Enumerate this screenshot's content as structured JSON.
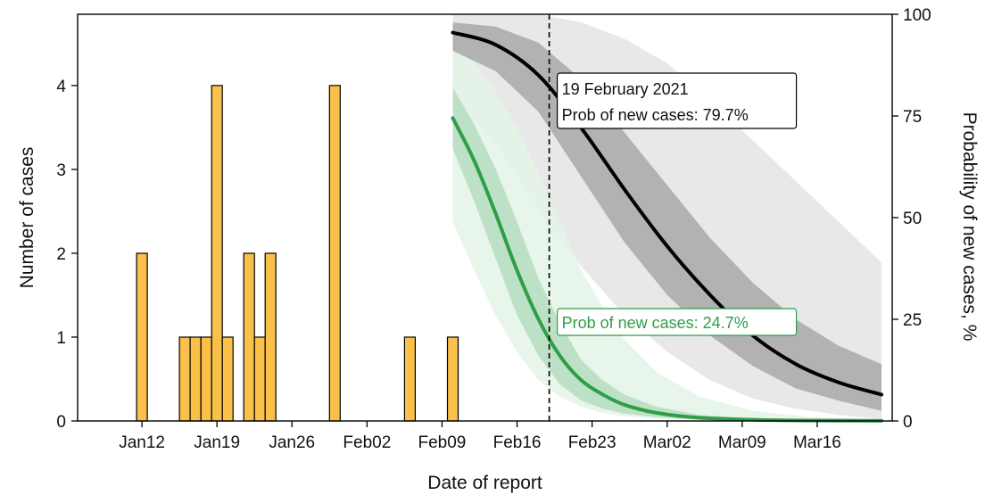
{
  "chart_data": {
    "type": "bar+line",
    "xlabel": "Date of report",
    "ylabel_left": "Number of cases",
    "ylabel_right": "Probability of new cases, %",
    "x_range": [
      "2021-01-06",
      "2021-03-23"
    ],
    "ylim_left": [
      0,
      4.85
    ],
    "ylim_right": [
      0,
      100
    ],
    "yticks_left": [
      0,
      1,
      2,
      3,
      4
    ],
    "yticks_right": [
      0,
      25,
      50,
      75,
      100
    ],
    "xticks": [
      {
        "date": "2021-01-12",
        "label": "Jan12"
      },
      {
        "date": "2021-01-19",
        "label": "Jan19"
      },
      {
        "date": "2021-01-26",
        "label": "Jan26"
      },
      {
        "date": "2021-02-02",
        "label": "Feb02"
      },
      {
        "date": "2021-02-09",
        "label": "Feb09"
      },
      {
        "date": "2021-02-16",
        "label": "Feb16"
      },
      {
        "date": "2021-02-23",
        "label": "Feb23"
      },
      {
        "date": "2021-03-02",
        "label": "Mar02"
      },
      {
        "date": "2021-03-09",
        "label": "Mar09"
      },
      {
        "date": "2021-03-16",
        "label": "Mar16"
      }
    ],
    "bars": {
      "color": "#f9c04a",
      "dates": [
        "2021-01-12",
        "2021-01-16",
        "2021-01-17",
        "2021-01-18",
        "2021-01-19",
        "2021-01-20",
        "2021-01-22",
        "2021-01-23",
        "2021-01-24",
        "2021-01-30",
        "2021-02-06",
        "2021-02-10"
      ],
      "values": [
        2,
        1,
        1,
        1,
        4,
        1,
        2,
        1,
        2,
        4,
        1,
        1
      ]
    },
    "cutoff": {
      "date": "2021-02-19",
      "label": "19 February 2021"
    },
    "series": [
      {
        "color": "#000000",
        "band_inner_color": "#a8a8a8",
        "band_outer_color": "#e4e4e4",
        "annotation": "Prob of new cases: 79.7%",
        "dates": [
          "2021-02-10",
          "2021-02-14",
          "2021-02-18",
          "2021-02-22",
          "2021-02-26",
          "2021-03-02",
          "2021-03-06",
          "2021-03-10",
          "2021-03-14",
          "2021-03-18",
          "2021-03-22"
        ],
        "values": [
          95.5,
          92.5,
          85,
          72,
          57,
          43,
          31,
          21,
          14,
          9.5,
          6.5
        ],
        "inner_upper": [
          98,
          97,
          93,
          84,
          71,
          58,
          45,
          34,
          25,
          18.5,
          14
        ],
        "inner_lower": [
          91,
          86,
          76,
          60,
          44,
          31,
          21,
          13.5,
          8,
          5,
          2.5
        ],
        "outer_upper": [
          100,
          100,
          100,
          98,
          94,
          88,
          79,
          69,
          59,
          49,
          39
        ],
        "outer_lower": [
          80,
          68,
          52,
          38,
          26,
          17,
          10,
          5.5,
          3,
          1.5,
          0.5
        ]
      },
      {
        "color": "#2e9e48",
        "band_inner_color": "#b5ddbf",
        "band_outer_color": "#e4f3e7",
        "annotation": "Prob of new cases: 24.7%",
        "dates": [
          "2021-02-10",
          "2021-02-12",
          "2021-02-14",
          "2021-02-16",
          "2021-02-18",
          "2021-02-20",
          "2021-02-22",
          "2021-02-24",
          "2021-02-26",
          "2021-03-01",
          "2021-03-05",
          "2021-03-10",
          "2021-03-16",
          "2021-03-22"
        ],
        "values": [
          74.5,
          64,
          51,
          37,
          25,
          16,
          10,
          6.5,
          4,
          2,
          0.8,
          0.3,
          0.1,
          0.05
        ],
        "inner_upper": [
          82,
          73,
          62,
          49,
          35,
          24,
          15,
          10,
          6.5,
          3.5,
          1.5,
          0.6,
          0.2,
          0.1
        ],
        "inner_lower": [
          67,
          54,
          40,
          26,
          16,
          9,
          5,
          3,
          1.8,
          0.9,
          0.4,
          0.15,
          0.05,
          0
        ],
        "outer_upper": [
          93,
          88,
          81,
          72,
          61,
          49,
          37,
          28,
          20,
          12,
          6,
          2.5,
          0.8,
          0.3
        ],
        "outer_lower": [
          49,
          37,
          26,
          17,
          10,
          6,
          3.5,
          2,
          1.2,
          0.6,
          0.2,
          0.1,
          0,
          0
        ]
      }
    ]
  }
}
